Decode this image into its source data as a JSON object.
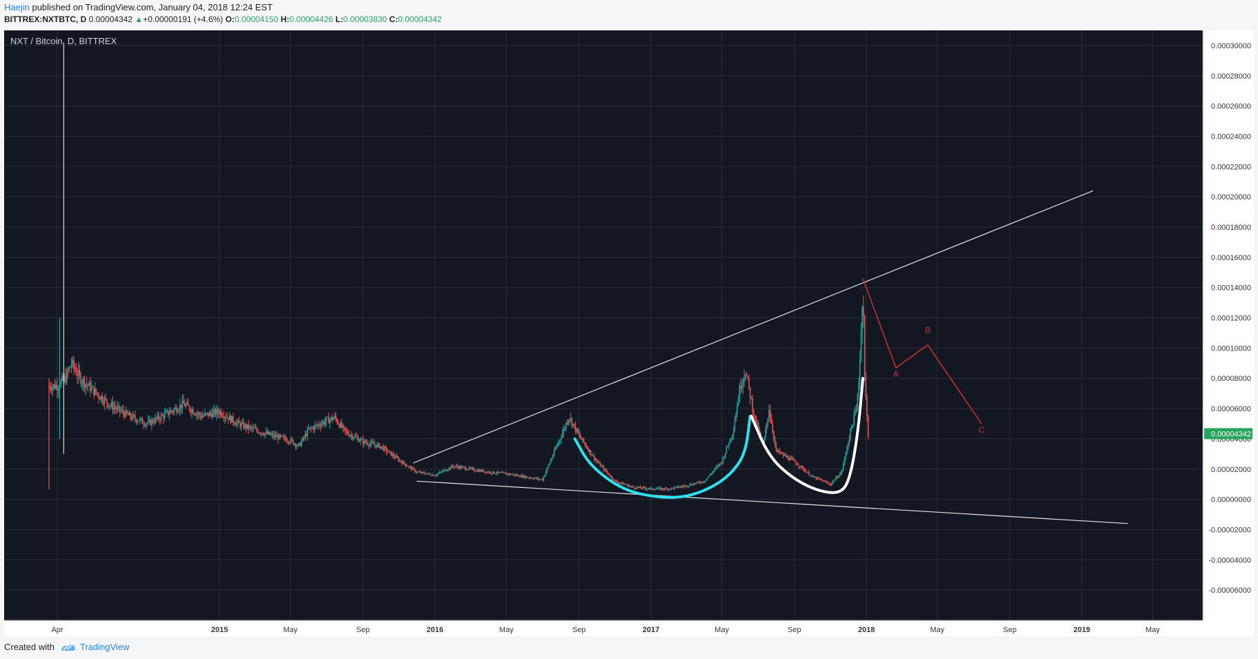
{
  "header": {
    "author": "Haejin",
    "published": " published on TradingView.com, January 04, 2018 12:24 EST",
    "symbol": "BITTREX:NXTBTC, D",
    "last": "0.00004342",
    "change_arrow": "▲",
    "change": "+0.00000191 (+4.6%)",
    "o_label": "O:",
    "o_value": "0.00004150",
    "h_label": "H:",
    "h_value": "0.00004426",
    "l_label": "L:",
    "l_value": "0.00003830",
    "c_label": "C:",
    "c_value": "0.00004342"
  },
  "footer": {
    "created_with": "Created with",
    "brand": "TradingView"
  },
  "colors": {
    "background": "#131722",
    "grid": "#2a2e39",
    "axis_text": "#d1d4dc",
    "up": "#26a69a",
    "down": "#ef5350",
    "trendline": "#e6e6e6",
    "cyan_curve": "#2de1ee",
    "white_curve": "#ffffff",
    "projection": "#d0312d",
    "price_label_bg": "#26a65b"
  },
  "chart_data": {
    "type": "candlestick",
    "title": "NXT / Bitcoin, D, BITTREX",
    "ylim": [
      -0.0001,
      0.0003
    ],
    "y_ticks": [
      0.0003,
      0.00028,
      0.00026,
      0.00024,
      0.00022,
      0.0002,
      0.00018,
      0.00016,
      0.00014,
      0.00012,
      0.0001,
      8e-05,
      6e-05,
      4e-05,
      2e-05,
      0,
      -2e-05,
      -4e-05,
      -6e-05
    ],
    "y_tick_labels": [
      "0.00030000",
      "0.00028000",
      "0.00026000",
      "0.00024000",
      "0.00022000",
      "0.00020000",
      "0.00018000",
      "0.00016000",
      "0.00014000",
      "0.00012000",
      "0.00010000",
      "0.00008000",
      "0.00006000",
      "0.00004000",
      "0.00002000",
      "0.00000000",
      "-0.00002000",
      "-0.00004000",
      "-0.00006000"
    ],
    "x_range": [
      "2014-01-01",
      "2019-07-25"
    ],
    "x_ticks": [
      {
        "date": "2014-04-01",
        "label": "Apr",
        "bold": false
      },
      {
        "date": "2015-01-01",
        "label": "2015",
        "bold": true
      },
      {
        "date": "2015-05-01",
        "label": "May",
        "bold": false
      },
      {
        "date": "2015-09-01",
        "label": "Sep",
        "bold": false
      },
      {
        "date": "2016-01-01",
        "label": "2016",
        "bold": true
      },
      {
        "date": "2016-05-01",
        "label": "May",
        "bold": false
      },
      {
        "date": "2016-09-01",
        "label": "Sep",
        "bold": false
      },
      {
        "date": "2017-01-01",
        "label": "2017",
        "bold": true
      },
      {
        "date": "2017-05-01",
        "label": "May",
        "bold": false
      },
      {
        "date": "2017-09-01",
        "label": "Sep",
        "bold": false
      },
      {
        "date": "2018-01-01",
        "label": "2018",
        "bold": true
      },
      {
        "date": "2018-05-01",
        "label": "May",
        "bold": false
      },
      {
        "date": "2018-09-01",
        "label": "Sep",
        "bold": false
      },
      {
        "date": "2019-01-01",
        "label": "2019",
        "bold": true
      },
      {
        "date": "2019-05-01",
        "label": "May",
        "bold": false
      }
    ],
    "price_path": [
      [
        "2014-03-18",
        7.5e-05
      ],
      [
        "2014-04-01",
        7.5e-05
      ],
      [
        "2014-04-15",
        8e-05
      ],
      [
        "2014-04-25",
        9e-05
      ],
      [
        "2014-05-10",
        8e-05
      ],
      [
        "2014-06-01",
        7.2e-05
      ],
      [
        "2014-07-01",
        6.2e-05
      ],
      [
        "2014-08-01",
        5.5e-05
      ],
      [
        "2014-09-01",
        5e-05
      ],
      [
        "2014-10-01",
        5.6e-05
      ],
      [
        "2014-11-01",
        6.3e-05
      ],
      [
        "2014-12-01",
        5.5e-05
      ],
      [
        "2015-01-01",
        5.8e-05
      ],
      [
        "2015-02-01",
        5e-05
      ],
      [
        "2015-03-01",
        4.6e-05
      ],
      [
        "2015-04-01",
        4.2e-05
      ],
      [
        "2015-05-01",
        3.9e-05
      ],
      [
        "2015-05-15",
        3.5e-05
      ],
      [
        "2015-06-01",
        4.6e-05
      ],
      [
        "2015-07-01",
        5.2e-05
      ],
      [
        "2015-07-15",
        5.4e-05
      ],
      [
        "2015-08-01",
        4.5e-05
      ],
      [
        "2015-09-01",
        3.8e-05
      ],
      [
        "2015-10-01",
        3.5e-05
      ],
      [
        "2015-11-01",
        2.6e-05
      ],
      [
        "2015-12-01",
        1.8e-05
      ],
      [
        "2016-01-01",
        1.6e-05
      ],
      [
        "2016-02-01",
        2.2e-05
      ],
      [
        "2016-03-01",
        2e-05
      ],
      [
        "2016-04-01",
        1.8e-05
      ],
      [
        "2016-05-01",
        1.7e-05
      ],
      [
        "2016-06-01",
        1.5e-05
      ],
      [
        "2016-07-01",
        1.3e-05
      ],
      [
        "2016-07-25",
        3.5e-05
      ],
      [
        "2016-08-05",
        4.5e-05
      ],
      [
        "2016-08-15",
        5.5e-05
      ],
      [
        "2016-09-01",
        4.2e-05
      ],
      [
        "2016-10-01",
        2.5e-05
      ],
      [
        "2016-11-01",
        1.2e-05
      ],
      [
        "2016-12-01",
        8e-06
      ],
      [
        "2017-01-01",
        7e-06
      ],
      [
        "2017-02-01",
        7e-06
      ],
      [
        "2017-03-01",
        9e-06
      ],
      [
        "2017-04-01",
        1.2e-05
      ],
      [
        "2017-05-01",
        2.5e-05
      ],
      [
        "2017-05-20",
        4.5e-05
      ],
      [
        "2017-06-01",
        7.5e-05
      ],
      [
        "2017-06-10",
        8.5e-05
      ],
      [
        "2017-06-25",
        5.5e-05
      ],
      [
        "2017-07-10",
        3.5e-05
      ],
      [
        "2017-07-20",
        6e-05
      ],
      [
        "2017-08-01",
        3.2e-05
      ],
      [
        "2017-09-01",
        2.5e-05
      ],
      [
        "2017-10-01",
        1.5e-05
      ],
      [
        "2017-11-01",
        1e-05
      ],
      [
        "2017-11-20",
        1.8e-05
      ],
      [
        "2017-12-05",
        4.5e-05
      ],
      [
        "2017-12-15",
        6e-05
      ],
      [
        "2017-12-20",
        8.5e-05
      ],
      [
        "2017-12-24",
        0.00012
      ],
      [
        "2017-12-26",
        0.000145
      ],
      [
        "2017-12-29",
        8e-05
      ],
      [
        "2018-01-01",
        6e-05
      ],
      [
        "2018-01-04",
        4.3e-05
      ]
    ],
    "early_wicks": [
      {
        "date": "2014-03-18",
        "high": 8e-05,
        "low": 6.5e-06,
        "color": "down"
      },
      {
        "date": "2014-04-05",
        "high": 0.00012,
        "low": 4e-05,
        "color": "up"
      },
      {
        "date": "2014-04-12",
        "high": 0.000302,
        "low": 3e-05,
        "color": "up"
      }
    ],
    "trendlines": [
      {
        "name": "upper-trendline",
        "from": [
          "2015-11-25",
          2.4e-05
        ],
        "to": [
          "2019-01-20",
          0.000204
        ]
      },
      {
        "name": "lower-trendline",
        "from": [
          "2015-12-01",
          1.2e-05
        ],
        "to": [
          "2019-03-20",
          -1.6e-05
        ]
      }
    ],
    "annotations": {
      "cyan_curve": [
        [
          "2016-08-25",
          4e-05
        ],
        [
          "2016-09-20",
          2.2e-05
        ],
        [
          "2016-11-15",
          6e-06
        ],
        [
          "2017-01-15",
          1e-06
        ],
        [
          "2017-03-01",
          1.5e-06
        ],
        [
          "2017-04-10",
          7e-06
        ],
        [
          "2017-05-15",
          1.6e-05
        ],
        [
          "2017-06-10",
          3e-05
        ],
        [
          "2017-06-18",
          5.5e-05
        ]
      ],
      "white_curve": [
        [
          "2017-06-20",
          5.5e-05
        ],
        [
          "2017-07-20",
          2.8e-05
        ],
        [
          "2017-09-01",
          1.3e-05
        ],
        [
          "2017-10-15",
          5e-06
        ],
        [
          "2017-11-20",
          4e-06
        ],
        [
          "2017-12-05",
          1.5e-05
        ],
        [
          "2017-12-18",
          4.5e-05
        ],
        [
          "2017-12-26",
          8e-05
        ]
      ],
      "projection": [
        [
          "2017-12-26",
          0.000146
        ],
        [
          "2018-02-20",
          8.7e-05
        ],
        [
          "2018-04-15",
          0.000102
        ],
        [
          "2018-07-15",
          5e-05
        ]
      ],
      "wave_labels": [
        {
          "label": "A",
          "date": "2018-02-20",
          "value": 8.1e-05
        },
        {
          "label": "B",
          "date": "2018-04-15",
          "value": 0.00011
        },
        {
          "label": "C",
          "date": "2018-07-15",
          "value": 4.4e-05
        }
      ]
    },
    "last_price": 4.342e-05,
    "last_price_label": "0.00004342"
  }
}
